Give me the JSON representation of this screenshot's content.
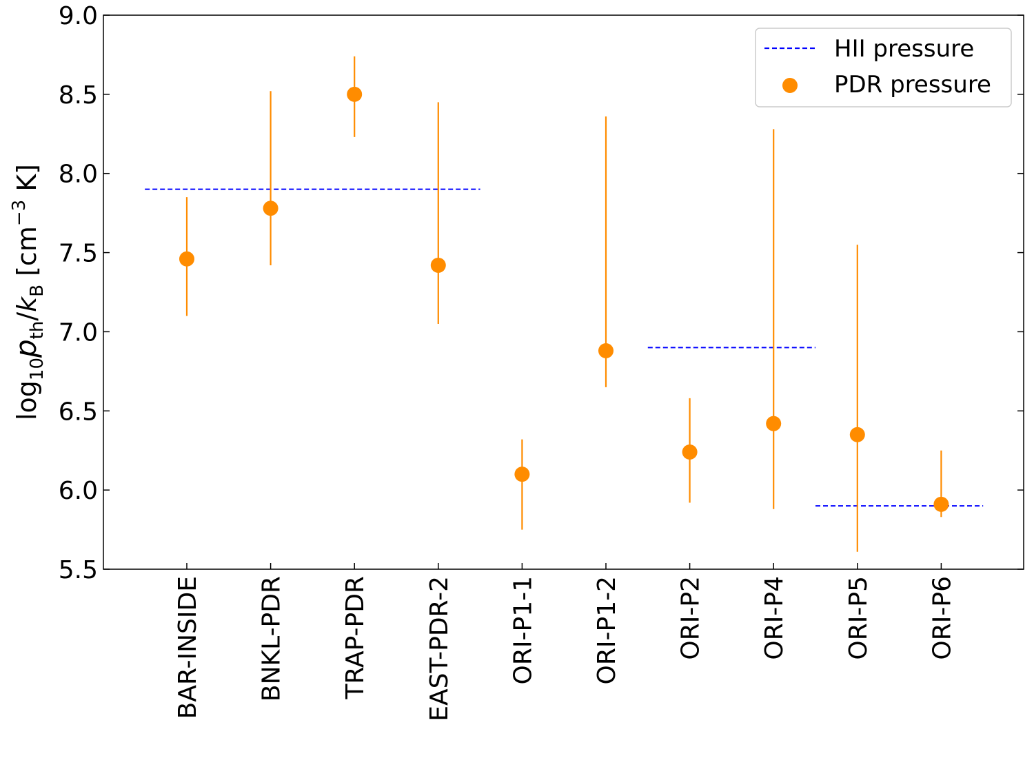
{
  "chart_data": {
    "type": "scatter",
    "title": "",
    "ylabel": "log10 p_th/k_B [cm^-3 K]",
    "ylabel_parts": {
      "log": "log",
      "log_sub": "10",
      "p": "p",
      "p_sub": "th",
      "slash": "/",
      "k": "k",
      "k_sub": "B",
      "unit_open": " [cm",
      "unit_exp": "−3",
      "unit_close": " K]"
    },
    "ylim": [
      5.5,
      9.0
    ],
    "yticks": [
      5.5,
      6.0,
      6.5,
      7.0,
      7.5,
      8.0,
      8.5,
      9.0
    ],
    "ytick_labels": [
      "5.5",
      "6.0",
      "6.5",
      "7.0",
      "7.5",
      "8.0",
      "8.5",
      "9.0"
    ],
    "categories": [
      "BAR-INSIDE",
      "BNKL-PDR",
      "TRAP-PDR",
      "EAST-PDR-2",
      "ORI-P1-1",
      "ORI-P1-2",
      "ORI-P2",
      "ORI-P4",
      "ORI-P5",
      "ORI-P6"
    ],
    "series": [
      {
        "name": "PDR pressure",
        "color": "#ff8c00",
        "values": [
          7.46,
          7.78,
          8.5,
          7.42,
          6.1,
          6.88,
          6.24,
          6.42,
          6.35,
          5.91
        ],
        "err_low": [
          7.1,
          7.42,
          8.23,
          7.05,
          5.75,
          6.65,
          5.92,
          5.88,
          5.61,
          5.83
        ],
        "err_high": [
          7.85,
          8.52,
          8.74,
          8.45,
          6.32,
          8.36,
          6.58,
          8.28,
          7.55,
          6.25
        ]
      }
    ],
    "hii_pressure": {
      "name": "HII pressure",
      "color": "#0000ff",
      "segments": [
        {
          "x_from": -0.5,
          "x_to": 3.5,
          "value": 7.9
        },
        {
          "x_from": 5.5,
          "x_to": 7.5,
          "value": 6.9
        },
        {
          "x_from": 7.5,
          "x_to": 9.5,
          "value": 5.9
        }
      ]
    },
    "legend": {
      "position": "top-right",
      "entries": [
        "HII pressure",
        "PDR pressure"
      ]
    }
  }
}
